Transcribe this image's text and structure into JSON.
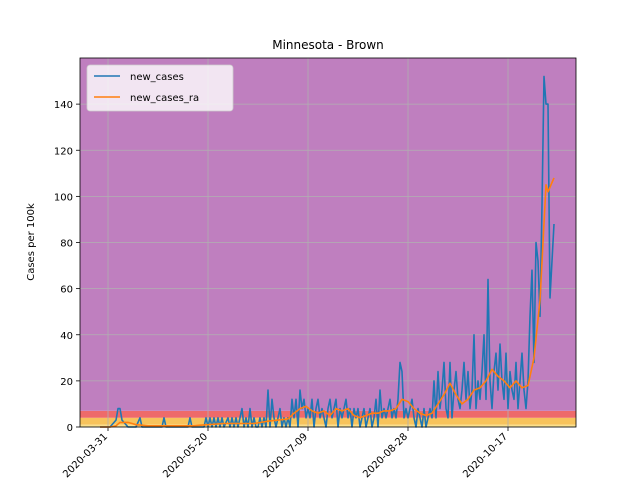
{
  "chart_data": {
    "type": "line",
    "title": "Minnesota - Brown",
    "xlabel": "",
    "ylabel": "Cases per 100k",
    "ylim": [
      0,
      160
    ],
    "yticks": [
      0,
      20,
      40,
      60,
      80,
      100,
      120,
      140
    ],
    "xticks": [
      "2020-03-31",
      "2020-05-20",
      "2020-07-09",
      "2020-08-28",
      "2020-10-17"
    ],
    "xlim": [
      "2020-03-17",
      "2020-11-20"
    ],
    "grid": true,
    "legend": {
      "placement": "top-left",
      "entries": [
        "new_cases",
        "new_cases_ra"
      ]
    },
    "background_bands": [
      {
        "from": 0,
        "to": 1,
        "color": "#fbe08a"
      },
      {
        "from": 1,
        "to": 4,
        "color": "#f7c35c"
      },
      {
        "from": 4,
        "to": 7,
        "color": "#ee6a6a"
      },
      {
        "from": 7,
        "to": 160,
        "color": "#bf7fbf"
      }
    ],
    "series": [
      {
        "name": "new_cases",
        "color": "#1f77b4",
        "points": [
          [
            "2020-03-27",
            0
          ],
          [
            "2020-04-01",
            0
          ],
          [
            "2020-04-04",
            3
          ],
          [
            "2020-04-05",
            8
          ],
          [
            "2020-04-06",
            8
          ],
          [
            "2020-04-07",
            3
          ],
          [
            "2020-04-10",
            0
          ],
          [
            "2020-04-14",
            0
          ],
          [
            "2020-04-16",
            4
          ],
          [
            "2020-04-17",
            0
          ],
          [
            "2020-04-27",
            0
          ],
          [
            "2020-04-28",
            4
          ],
          [
            "2020-04-29",
            0
          ],
          [
            "2020-05-10",
            0
          ],
          [
            "2020-05-11",
            4
          ],
          [
            "2020-05-12",
            0
          ],
          [
            "2020-05-18",
            0
          ],
          [
            "2020-05-19",
            4
          ],
          [
            "2020-05-20",
            0
          ],
          [
            "2020-05-21",
            4
          ],
          [
            "2020-05-22",
            0
          ],
          [
            "2020-05-23",
            4
          ],
          [
            "2020-05-24",
            0
          ],
          [
            "2020-05-25",
            4
          ],
          [
            "2020-05-26",
            0
          ],
          [
            "2020-05-27",
            4
          ],
          [
            "2020-05-28",
            0
          ],
          [
            "2020-05-30",
            4
          ],
          [
            "2020-05-31",
            0
          ],
          [
            "2020-06-01",
            4
          ],
          [
            "2020-06-02",
            0
          ],
          [
            "2020-06-03",
            4
          ],
          [
            "2020-06-04",
            0
          ],
          [
            "2020-06-06",
            8
          ],
          [
            "2020-06-07",
            0
          ],
          [
            "2020-06-08",
            4
          ],
          [
            "2020-06-09",
            0
          ],
          [
            "2020-06-10",
            8
          ],
          [
            "2020-06-11",
            0
          ],
          [
            "2020-06-12",
            4
          ],
          [
            "2020-06-13",
            0
          ],
          [
            "2020-06-14",
            0
          ],
          [
            "2020-06-15",
            4
          ],
          [
            "2020-06-16",
            0
          ],
          [
            "2020-06-17",
            4
          ],
          [
            "2020-06-18",
            0
          ],
          [
            "2020-06-19",
            16
          ],
          [
            "2020-06-20",
            0
          ],
          [
            "2020-06-21",
            12
          ],
          [
            "2020-06-22",
            4
          ],
          [
            "2020-06-23",
            0
          ],
          [
            "2020-06-24",
            4
          ],
          [
            "2020-06-25",
            8
          ],
          [
            "2020-06-26",
            0
          ],
          [
            "2020-06-27",
            4
          ],
          [
            "2020-06-28",
            0
          ],
          [
            "2020-06-29",
            4
          ],
          [
            "2020-06-30",
            0
          ],
          [
            "2020-07-01",
            12
          ],
          [
            "2020-07-02",
            4
          ],
          [
            "2020-07-03",
            12
          ],
          [
            "2020-07-04",
            0
          ],
          [
            "2020-07-05",
            16
          ],
          [
            "2020-07-06",
            8
          ],
          [
            "2020-07-07",
            12
          ],
          [
            "2020-07-08",
            4
          ],
          [
            "2020-07-09",
            8
          ],
          [
            "2020-07-10",
            4
          ],
          [
            "2020-07-11",
            12
          ],
          [
            "2020-07-12",
            0
          ],
          [
            "2020-07-13",
            8
          ],
          [
            "2020-07-14",
            12
          ],
          [
            "2020-07-15",
            4
          ],
          [
            "2020-07-16",
            8
          ],
          [
            "2020-07-17",
            4
          ],
          [
            "2020-07-18",
            0
          ],
          [
            "2020-07-19",
            8
          ],
          [
            "2020-07-20",
            12
          ],
          [
            "2020-07-21",
            4
          ],
          [
            "2020-07-22",
            8
          ],
          [
            "2020-07-23",
            12
          ],
          [
            "2020-07-24",
            0
          ],
          [
            "2020-07-25",
            8
          ],
          [
            "2020-07-26",
            4
          ],
          [
            "2020-07-27",
            8
          ],
          [
            "2020-07-28",
            12
          ],
          [
            "2020-07-29",
            4
          ],
          [
            "2020-07-30",
            8
          ],
          [
            "2020-07-31",
            0
          ],
          [
            "2020-08-01",
            8
          ],
          [
            "2020-08-02",
            4
          ],
          [
            "2020-08-03",
            8
          ],
          [
            "2020-08-04",
            0
          ],
          [
            "2020-08-05",
            4
          ],
          [
            "2020-08-06",
            8
          ],
          [
            "2020-08-07",
            0
          ],
          [
            "2020-08-08",
            4
          ],
          [
            "2020-08-09",
            8
          ],
          [
            "2020-08-10",
            0
          ],
          [
            "2020-08-11",
            4
          ],
          [
            "2020-08-12",
            12
          ],
          [
            "2020-08-13",
            0
          ],
          [
            "2020-08-14",
            16
          ],
          [
            "2020-08-15",
            4
          ],
          [
            "2020-08-16",
            8
          ],
          [
            "2020-08-17",
            4
          ],
          [
            "2020-08-18",
            8
          ],
          [
            "2020-08-19",
            12
          ],
          [
            "2020-08-20",
            4
          ],
          [
            "2020-08-21",
            8
          ],
          [
            "2020-08-22",
            4
          ],
          [
            "2020-08-23",
            12
          ],
          [
            "2020-08-24",
            28
          ],
          [
            "2020-08-25",
            24
          ],
          [
            "2020-08-26",
            4
          ],
          [
            "2020-08-27",
            8
          ],
          [
            "2020-08-28",
            4
          ],
          [
            "2020-08-29",
            8
          ],
          [
            "2020-08-30",
            12
          ],
          [
            "2020-08-31",
            4
          ],
          [
            "2020-09-01",
            0
          ],
          [
            "2020-09-02",
            8
          ],
          [
            "2020-09-03",
            4
          ],
          [
            "2020-09-04",
            0
          ],
          [
            "2020-09-05",
            8
          ],
          [
            "2020-09-06",
            0
          ],
          [
            "2020-09-07",
            4
          ],
          [
            "2020-09-08",
            8
          ],
          [
            "2020-09-09",
            4
          ],
          [
            "2020-09-10",
            20
          ],
          [
            "2020-09-11",
            4
          ],
          [
            "2020-09-12",
            24
          ],
          [
            "2020-09-13",
            8
          ],
          [
            "2020-09-14",
            16
          ],
          [
            "2020-09-15",
            28
          ],
          [
            "2020-09-16",
            8
          ],
          [
            "2020-09-17",
            4
          ],
          [
            "2020-09-18",
            28
          ],
          [
            "2020-09-19",
            4
          ],
          [
            "2020-09-20",
            16
          ],
          [
            "2020-09-21",
            24
          ],
          [
            "2020-09-22",
            12
          ],
          [
            "2020-09-23",
            8
          ],
          [
            "2020-09-24",
            16
          ],
          [
            "2020-09-25",
            28
          ],
          [
            "2020-09-26",
            12
          ],
          [
            "2020-09-27",
            24
          ],
          [
            "2020-09-28",
            8
          ],
          [
            "2020-09-29",
            16
          ],
          [
            "2020-09-30",
            40
          ],
          [
            "2020-10-01",
            8
          ],
          [
            "2020-10-02",
            20
          ],
          [
            "2020-10-03",
            12
          ],
          [
            "2020-10-04",
            24
          ],
          [
            "2020-10-05",
            40
          ],
          [
            "2020-10-06",
            12
          ],
          [
            "2020-10-07",
            64
          ],
          [
            "2020-10-08",
            20
          ],
          [
            "2020-10-09",
            8
          ],
          [
            "2020-10-10",
            24
          ],
          [
            "2020-10-11",
            32
          ],
          [
            "2020-10-12",
            16
          ],
          [
            "2020-10-13",
            36
          ],
          [
            "2020-10-14",
            20
          ],
          [
            "2020-10-15",
            12
          ],
          [
            "2020-10-16",
            32
          ],
          [
            "2020-10-17",
            8
          ],
          [
            "2020-10-18",
            24
          ],
          [
            "2020-10-19",
            16
          ],
          [
            "2020-10-20",
            12
          ],
          [
            "2020-10-21",
            28
          ],
          [
            "2020-10-22",
            8
          ],
          [
            "2020-10-23",
            20
          ],
          [
            "2020-10-24",
            32
          ],
          [
            "2020-10-25",
            16
          ],
          [
            "2020-10-26",
            8
          ],
          [
            "2020-10-27",
            20
          ],
          [
            "2020-10-28",
            48
          ],
          [
            "2020-10-29",
            68
          ],
          [
            "2020-10-30",
            28
          ],
          [
            "2020-10-31",
            80
          ],
          [
            "2020-11-01",
            72
          ],
          [
            "2020-11-02",
            48
          ],
          [
            "2020-11-03",
            96
          ],
          [
            "2020-11-04",
            152
          ],
          [
            "2020-11-05",
            140
          ],
          [
            "2020-11-06",
            140
          ],
          [
            "2020-11-07",
            56
          ],
          [
            "2020-11-08",
            72
          ],
          [
            "2020-11-09",
            88
          ]
        ]
      },
      {
        "name": "new_cases_ra",
        "color": "#ff7f0e",
        "points": [
          [
            "2020-03-27",
            0
          ],
          [
            "2020-04-01",
            0
          ],
          [
            "2020-04-04",
            0.5
          ],
          [
            "2020-04-06",
            2
          ],
          [
            "2020-04-10",
            2
          ],
          [
            "2020-04-14",
            1
          ],
          [
            "2020-04-20",
            0.5
          ],
          [
            "2020-04-27",
            0.5
          ],
          [
            "2020-05-05",
            0.5
          ],
          [
            "2020-05-12",
            0.5
          ],
          [
            "2020-05-20",
            1
          ],
          [
            "2020-05-28",
            1.5
          ],
          [
            "2020-06-05",
            1.5
          ],
          [
            "2020-06-12",
            1.5
          ],
          [
            "2020-06-19",
            2.5
          ],
          [
            "2020-06-24",
            3
          ],
          [
            "2020-06-29",
            3.5
          ],
          [
            "2020-07-02",
            6
          ],
          [
            "2020-07-05",
            8
          ],
          [
            "2020-07-08",
            9
          ],
          [
            "2020-07-11",
            7
          ],
          [
            "2020-07-14",
            6
          ],
          [
            "2020-07-17",
            7
          ],
          [
            "2020-07-20",
            5
          ],
          [
            "2020-07-23",
            8
          ],
          [
            "2020-07-26",
            7
          ],
          [
            "2020-07-29",
            8
          ],
          [
            "2020-08-01",
            5
          ],
          [
            "2020-08-04",
            4
          ],
          [
            "2020-08-07",
            5
          ],
          [
            "2020-08-10",
            6
          ],
          [
            "2020-08-13",
            6
          ],
          [
            "2020-08-16",
            7
          ],
          [
            "2020-08-19",
            7
          ],
          [
            "2020-08-22",
            8
          ],
          [
            "2020-08-25",
            12
          ],
          [
            "2020-08-28",
            11
          ],
          [
            "2020-08-31",
            8
          ],
          [
            "2020-09-03",
            6
          ],
          [
            "2020-09-06",
            5
          ],
          [
            "2020-09-09",
            6
          ],
          [
            "2020-09-12",
            10
          ],
          [
            "2020-09-15",
            14
          ],
          [
            "2020-09-18",
            19
          ],
          [
            "2020-09-21",
            14
          ],
          [
            "2020-09-24",
            10
          ],
          [
            "2020-09-27",
            12
          ],
          [
            "2020-09-30",
            16
          ],
          [
            "2020-10-03",
            17
          ],
          [
            "2020-10-06",
            20
          ],
          [
            "2020-10-09",
            25
          ],
          [
            "2020-10-12",
            22
          ],
          [
            "2020-10-15",
            20
          ],
          [
            "2020-10-18",
            17
          ],
          [
            "2020-10-21",
            20
          ],
          [
            "2020-10-24",
            17
          ],
          [
            "2020-10-27",
            18
          ],
          [
            "2020-10-30",
            30
          ],
          [
            "2020-11-02",
            55
          ],
          [
            "2020-11-05",
            105
          ],
          [
            "2020-11-06",
            102
          ],
          [
            "2020-11-07",
            104
          ],
          [
            "2020-11-08",
            106
          ],
          [
            "2020-11-09",
            108
          ]
        ]
      }
    ]
  }
}
